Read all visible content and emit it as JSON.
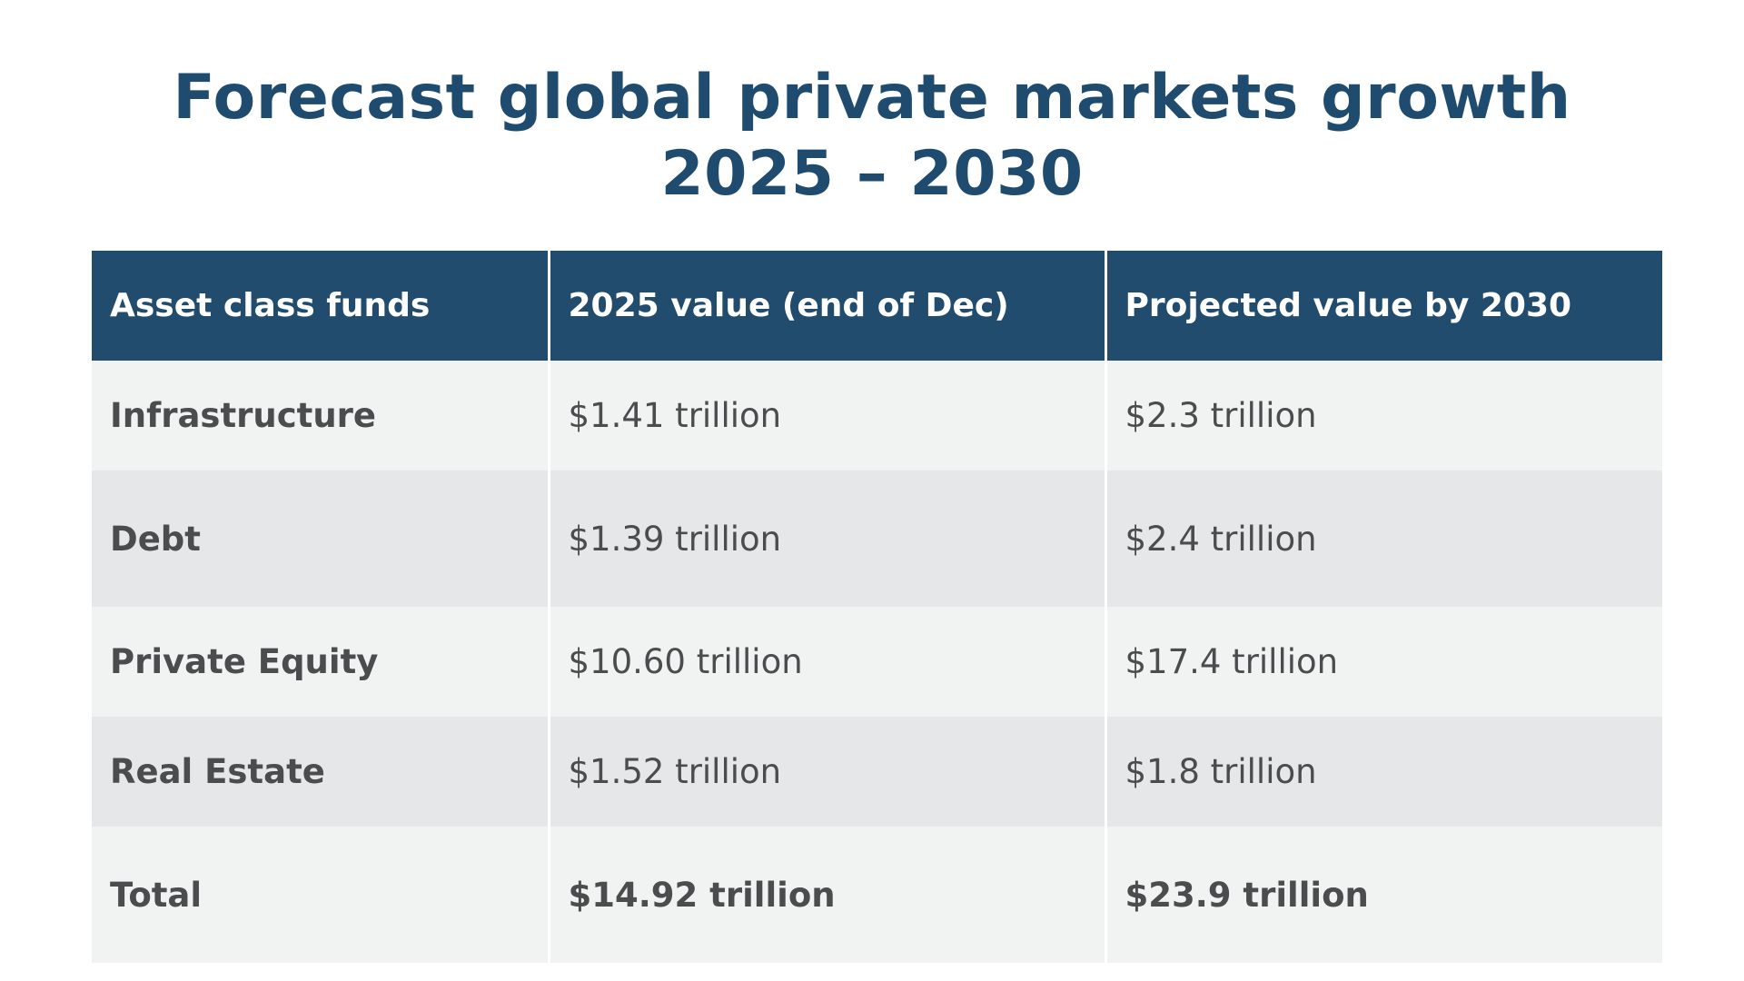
{
  "chart_data": {
    "type": "table",
    "title_line1": "Forecast global private markets growth",
    "title_line2": "2025 – 2030",
    "columns": [
      "Asset class funds",
      "2025 value (end of Dec)",
      "Projected value by 2030"
    ],
    "rows": [
      {
        "label": "Infrastructure",
        "v2025": "$1.41 trillion",
        "v2030": "$2.3 trillion"
      },
      {
        "label": "Debt",
        "v2025": "$1.39 trillion",
        "v2030": "$2.4 trillion"
      },
      {
        "label": "Private Equity",
        "v2025": "$10.60 trillion",
        "v2030": "$17.4 trillion"
      },
      {
        "label": "Real Estate",
        "v2025": "$1.52 trillion",
        "v2030": "$1.8 trillion"
      },
      {
        "label": "Total",
        "v2025": "$14.92 trillion",
        "v2030": "$23.9 trillion"
      }
    ]
  },
  "colors": {
    "title": "#1f4c6e",
    "header_bg": "#214c6d",
    "header_text": "#ffffff",
    "row_light": "#f1f2f2",
    "row_dark": "#e6e7e8",
    "body_text": "#4a4c4e"
  }
}
